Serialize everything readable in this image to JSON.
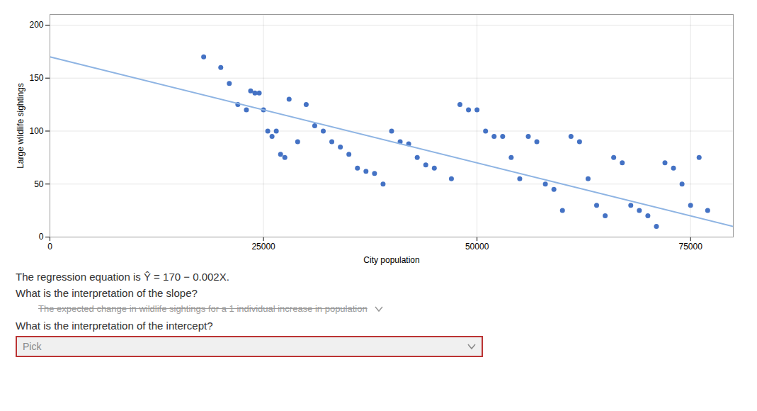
{
  "chart_data": {
    "type": "scatter",
    "xlabel": "City population",
    "ylabel": "Large wildlife sightings",
    "xlim": [
      0,
      80000
    ],
    "ylim": [
      0,
      210
    ],
    "xticks": [
      0,
      25000,
      50000,
      75000
    ],
    "yticks": [
      0,
      50,
      100,
      150,
      200
    ],
    "grid": true,
    "series": [
      {
        "type": "scatter",
        "marker": "circle",
        "color": "#4472C4",
        "x": [
          18000,
          20000,
          21000,
          22000,
          23000,
          23500,
          24000,
          24500,
          25000,
          25500,
          26000,
          26500,
          27000,
          27500,
          28000,
          29000,
          30000,
          31000,
          32000,
          33000,
          34000,
          35000,
          36000,
          37000,
          38000,
          39000,
          40000,
          41000,
          42000,
          43000,
          44000,
          45000,
          47000,
          48000,
          49000,
          50000,
          51000,
          52000,
          53000,
          54000,
          55000,
          56000,
          57000,
          58000,
          59000,
          60000,
          61000,
          62000,
          63000,
          64000,
          65000,
          66000,
          67000,
          68000,
          69000,
          70000,
          71000,
          72000,
          73000,
          74000,
          75000,
          76000,
          77000
        ],
        "values": [
          170,
          160,
          145,
          125,
          120,
          138,
          136,
          136,
          120,
          100,
          95,
          100,
          78,
          75,
          130,
          90,
          125,
          105,
          100,
          90,
          85,
          78,
          65,
          62,
          60,
          50,
          100,
          90,
          88,
          75,
          68,
          65,
          55,
          125,
          120,
          120,
          100,
          95,
          95,
          75,
          55,
          95,
          90,
          50,
          45,
          25,
          95,
          90,
          55,
          30,
          20,
          75,
          70,
          30,
          25,
          20,
          10,
          70,
          65,
          50,
          30,
          75,
          25
        ]
      },
      {
        "type": "line",
        "line_style": "solid",
        "color": "#8EB4E3",
        "x": [
          0,
          80000
        ],
        "values": [
          170,
          10
        ]
      }
    ],
    "annotations": [
      "The regression equation is Ŷ = 170 − 0.002X.",
      "What is the interpretation of the slope?",
      "The expected change in wildlife sightings for a 1 individual increase in population",
      "What is the interpretation of the intercept?",
      "Pick"
    ]
  }
}
